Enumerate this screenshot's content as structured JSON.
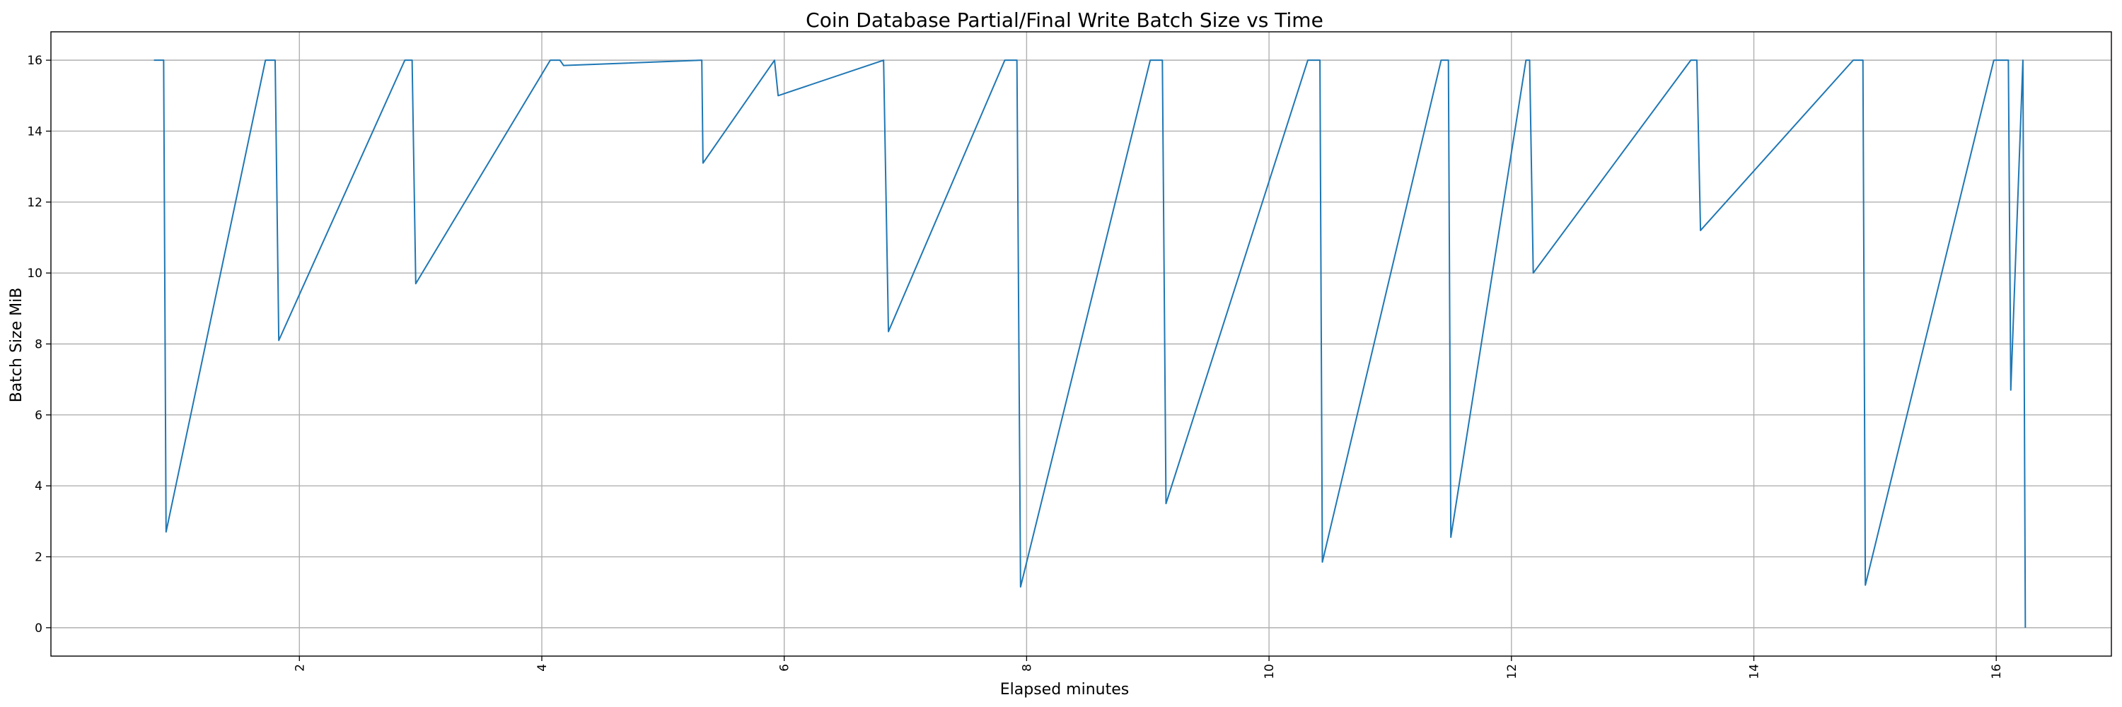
{
  "chart_data": {
    "type": "line",
    "title": "Coin Database Partial/Final Write Batch Size vs Time",
    "xlabel": "Elapsed minutes",
    "ylabel": "Batch Size MiB",
    "xlim": [
      -0.05,
      16.95
    ],
    "ylim": [
      -0.8,
      16.8
    ],
    "xticks": [
      2,
      4,
      6,
      8,
      10,
      12,
      14,
      16
    ],
    "yticks": [
      0,
      2,
      4,
      6,
      8,
      10,
      12,
      14,
      16
    ],
    "xtick_rotation": "vertical",
    "grid": true,
    "legend": "none",
    "series": [
      {
        "color": "#1f77b4",
        "x": [
          0.8,
          0.88,
          0.88,
          0.9,
          1.72,
          1.8,
          1.8,
          1.83,
          2.87,
          2.93,
          2.93,
          2.96,
          4.07,
          4.15,
          4.15,
          4.18,
          5.32,
          5.32,
          5.33,
          5.92,
          5.92,
          5.95,
          6.82,
          6.82,
          6.86,
          7.82,
          7.92,
          7.92,
          7.95,
          9.02,
          9.12,
          9.12,
          9.15,
          10.32,
          10.42,
          10.42,
          10.44,
          11.42,
          11.48,
          11.48,
          11.5,
          12.12,
          12.15,
          12.15,
          12.18,
          13.48,
          13.53,
          13.53,
          13.56,
          14.82,
          14.9,
          14.9,
          14.92,
          15.98,
          16.1,
          16.1,
          16.12,
          16.22,
          16.22,
          16.24
        ],
        "y": [
          16,
          16,
          16,
          2.7,
          16,
          16,
          16,
          8.1,
          16,
          16,
          16,
          9.7,
          16,
          16,
          16,
          15.85,
          16,
          16,
          13.1,
          16,
          16,
          15,
          16,
          16,
          8.35,
          16,
          16,
          16,
          1.15,
          16,
          16,
          16,
          3.5,
          16,
          16,
          16,
          1.85,
          16,
          16,
          16,
          2.55,
          16,
          16,
          16,
          10,
          16,
          16,
          16,
          11.2,
          16,
          16,
          16,
          1.2,
          16,
          16,
          16,
          6.7,
          16,
          16,
          0
        ]
      }
    ]
  }
}
